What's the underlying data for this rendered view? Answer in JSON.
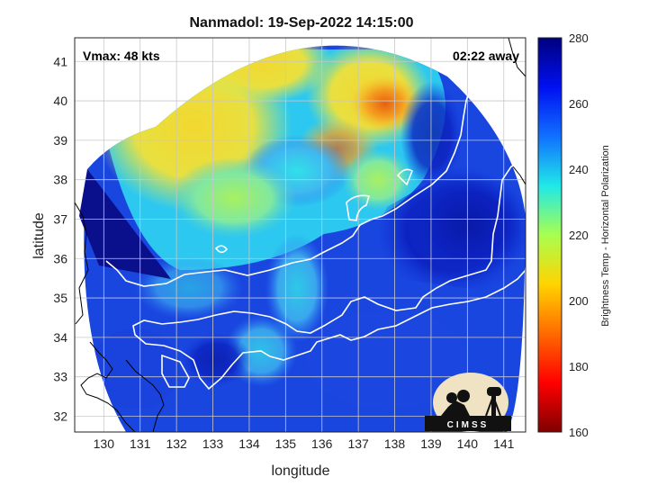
{
  "title": "Nanmadol: 19-Sep-2022 14:15:00",
  "vmax_text": "Vmax: 48 kts",
  "time_away_text": "02:22 away",
  "xlabel": "longitude",
  "ylabel": "latitude",
  "colorbar": {
    "label": "Brightness Temp - Horizontal Polarization",
    "min": 160,
    "max": 280,
    "ticks": [
      "280",
      "260",
      "240",
      "220",
      "200",
      "180",
      "160"
    ],
    "colormap": "jet",
    "colors": [
      "#7f0000",
      "#ff0000",
      "#ff8000",
      "#ffff00",
      "#80ff80",
      "#00ffff",
      "#0080ff",
      "#0000ff",
      "#00008f"
    ]
  },
  "axes": {
    "xlim": [
      129.2,
      141.6
    ],
    "ylim": [
      31.6,
      41.6
    ],
    "xticks": [
      "130",
      "131",
      "132",
      "133",
      "134",
      "135",
      "136",
      "137",
      "138",
      "139",
      "140",
      "141"
    ],
    "yticks": [
      "41",
      "40",
      "39",
      "38",
      "37",
      "36",
      "35",
      "34",
      "33",
      "32"
    ],
    "grid": true
  },
  "logo_text": "CIMSS",
  "chart_data": {
    "type": "heatmap",
    "title": "Nanmadol: 19-Sep-2022 14:15:00",
    "xlabel": "longitude",
    "ylabel": "latitude",
    "xlim": [
      129.2,
      141.6
    ],
    "ylim": [
      31.6,
      41.6
    ],
    "colorbar_label": "Brightness Temp - Horizontal Polarization",
    "colorbar_range": [
      160,
      280
    ]
  }
}
